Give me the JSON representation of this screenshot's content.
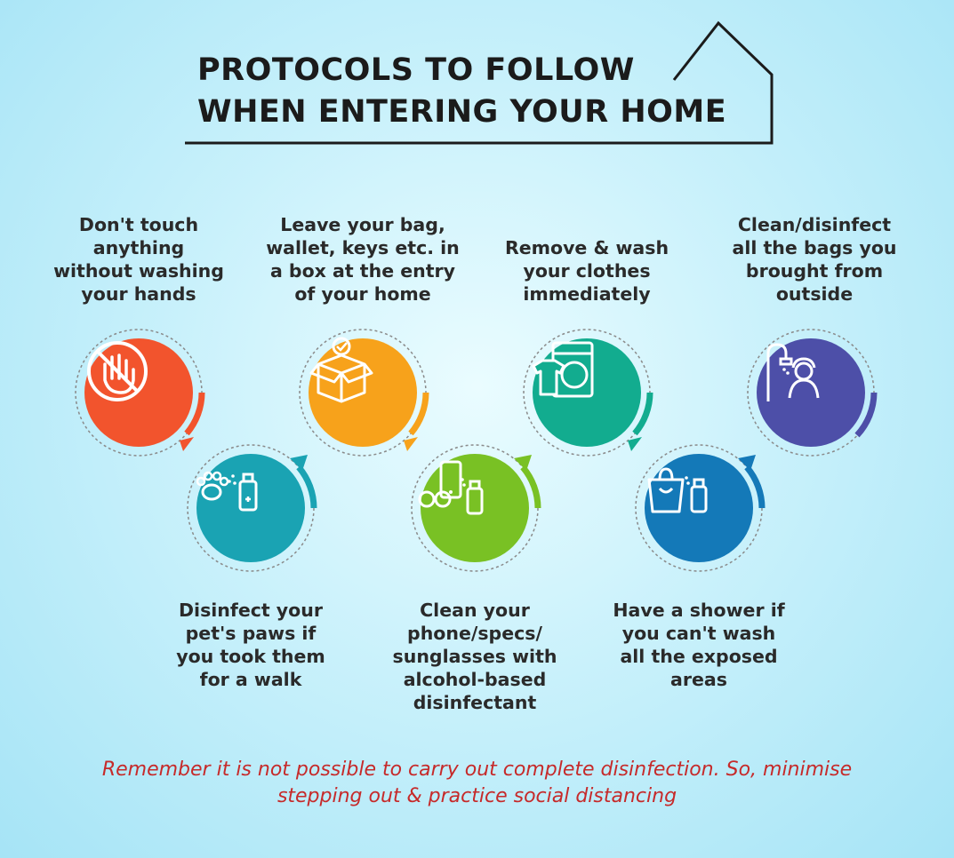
{
  "title": {
    "line1": "PROTOCOLS TO FOLLOW",
    "line2": "WHEN ENTERING YOUR HOME"
  },
  "steps": [
    {
      "text": "Don't touch\nanything\nwithout washing\nyour hands",
      "color": "#f2542d",
      "icon": "no-touch-hand-icon"
    },
    {
      "text": "Disinfect your\npet's paws if\nyou took them\nfor a walk",
      "color": "#1aa3b3",
      "icon": "paw-spray-icon"
    },
    {
      "text": "Leave your bag,\nwallet, keys etc. in\na box at the entry\nof your home",
      "color": "#f7a21b",
      "icon": "box-icon"
    },
    {
      "text": "Clean your\nphone/specs/\nsunglasses with\nalcohol-based\ndisinfectant",
      "color": "#79c124",
      "icon": "phone-spray-icon"
    },
    {
      "text": "Remove & wash\nyour clothes\nimmediately",
      "color": "#12ac8f",
      "icon": "washing-machine-icon"
    },
    {
      "text": "Have a shower if\nyou can't wash\nall the exposed\nareas",
      "color": "#1479b8",
      "icon": "bag-spray-icon"
    },
    {
      "text": "Clean/disinfect\nall the bags you\nbrought from\noutside",
      "color": "#4d4fa8",
      "icon": "shower-icon"
    }
  ],
  "footer": "Remember it is not possible to carry out complete disinfection. So, minimise\nstepping out & practice social distancing"
}
